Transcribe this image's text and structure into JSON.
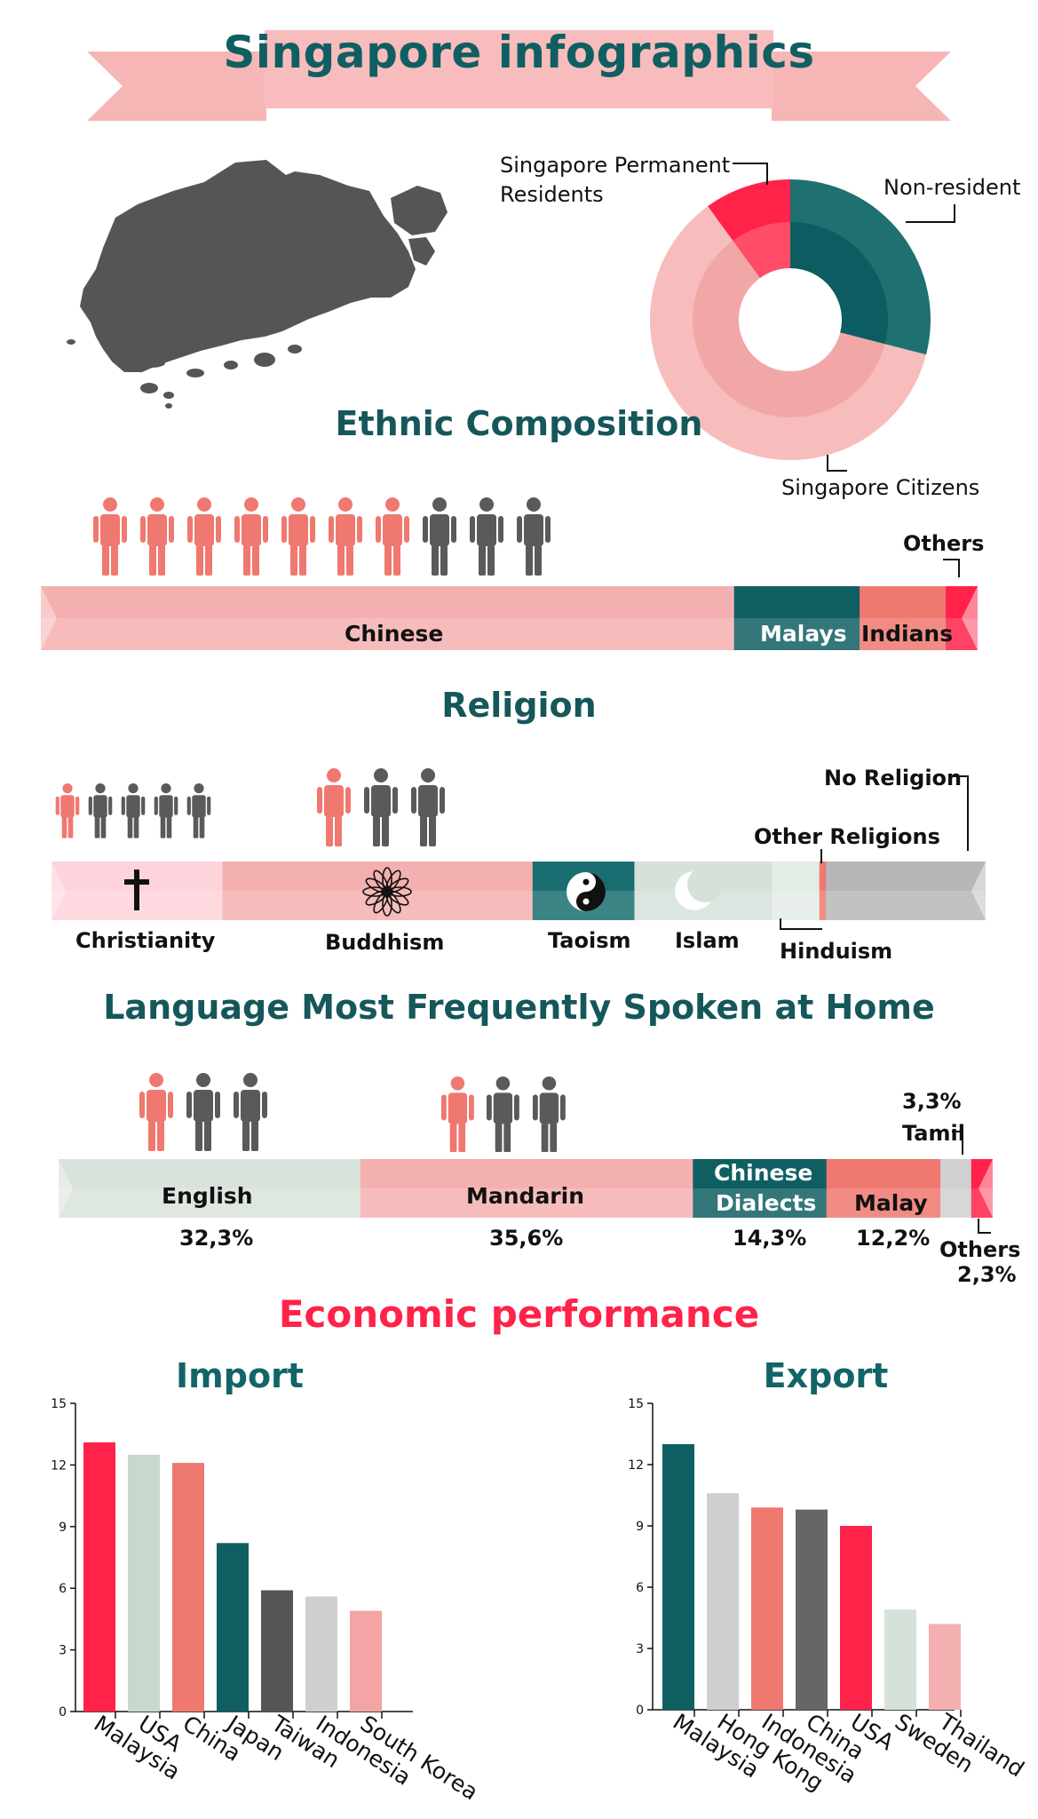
{
  "page": {
    "title": "Singapore infographics"
  },
  "residency": {
    "labels": {
      "permanent": "Singapore Permanent Residents",
      "non_resident": "Non-resident",
      "citizens": "Singapore Citizens"
    },
    "outer": [
      {
        "name": "Non-resident",
        "value": 29,
        "color": "#1f7071"
      },
      {
        "name": "Singapore Citizens",
        "value": 61,
        "color": "#f7bcbc"
      },
      {
        "name": "Singapore Permanent Residents",
        "value": 10,
        "color": "#ff2249"
      }
    ],
    "inner": [
      {
        "name": "Non-resident",
        "value": 29,
        "color": "#0c5d61"
      },
      {
        "name": "Singapore Citizens",
        "value": 61,
        "color": "#f2a7a7"
      },
      {
        "name": "Singapore Permanent Residents",
        "value": 10,
        "color": "#ff4d68"
      }
    ]
  },
  "ethnic": {
    "title": "Ethnic Composition",
    "people": {
      "highlighted": 7,
      "total": 10
    },
    "segments": [
      {
        "label": "Chinese",
        "value": 74,
        "color": "#f4b0b0"
      },
      {
        "label": "Malays",
        "value": 13.4,
        "color": "#0f5f62"
      },
      {
        "label": "Indians",
        "value": 9.2,
        "color": "#ef7870"
      },
      {
        "label": "Others",
        "value": 3.4,
        "color": "#ff2249"
      }
    ]
  },
  "religion": {
    "title": "Religion",
    "labels": {
      "christianity": "Christianity",
      "buddhism": "Buddhism",
      "taoism": "Taoism",
      "islam": "Islam",
      "hinduism": "Hinduism",
      "other": "Other Religions",
      "none": "No Religion"
    },
    "people_small": {
      "highlighted": 1,
      "total": 5
    },
    "people_large": {
      "highlighted": 1,
      "total": 3
    },
    "segments": [
      {
        "label": "Christianity",
        "value": 18.3,
        "color": "#ffd3db"
      },
      {
        "label": "Buddhism",
        "value": 33.2,
        "color": "#f4b0b0"
      },
      {
        "label": "Taoism",
        "value": 10.9,
        "color": "#1a6d70"
      },
      {
        "label": "Islam",
        "value": 14.7,
        "color": "#d6e1da"
      },
      {
        "label": "Hinduism",
        "value": 5.1,
        "color": "#e4ece6"
      },
      {
        "label": "Other Religions",
        "value": 0.7,
        "color": "#ef7870"
      },
      {
        "label": "No Religion",
        "value": 17.1,
        "color": "#b7b7b7"
      }
    ]
  },
  "language": {
    "title": "Language Most Frequently Spoken at Home",
    "people": {
      "highlighted": 1,
      "total": 3
    },
    "segments": [
      {
        "label": "English",
        "pct": "32,3%",
        "value": 32.3,
        "color": "#d9e3dc"
      },
      {
        "label": "Mandarin",
        "pct": "35,6%",
        "value": 35.6,
        "color": "#f4b0b0"
      },
      {
        "label": "Chinese Dialects",
        "pct": "14,3%",
        "value": 14.3,
        "color": "#0f5f62"
      },
      {
        "label": "Malay",
        "pct": "12,2%",
        "value": 12.2,
        "color": "#ef7870"
      },
      {
        "label": "Tamil",
        "pct": "3,3%",
        "value": 3.3,
        "color": "#d0d0d0"
      },
      {
        "label": "Others",
        "pct": "2,3%",
        "value": 2.3,
        "color": "#ff2249"
      }
    ],
    "labels": {
      "chinese_line1": "Chinese",
      "chinese_line2": "Dialects",
      "tamil": "Tamil",
      "tamil_pct": "3,3%",
      "others": "Others",
      "others_pct": "2,3%"
    }
  },
  "economy": {
    "title": "Economic performance"
  },
  "chart_data": [
    {
      "type": "bar",
      "title": "Import",
      "categories": [
        "Malaysia",
        "USA",
        "China",
        "Japan",
        "Taiwan",
        "Indonesia",
        "South Korea"
      ],
      "values": [
        13.1,
        12.5,
        12.1,
        8.2,
        5.9,
        5.6,
        4.9
      ],
      "colors": [
        "#ff2249",
        "#c9d8cf",
        "#ef7870",
        "#0f5f62",
        "#555555",
        "#cfcfcf",
        "#f4a4a4"
      ],
      "ylim": [
        0,
        15
      ],
      "yticks": [
        0,
        3,
        6,
        9,
        12,
        15
      ]
    },
    {
      "type": "bar",
      "title": "Export",
      "categories": [
        "Malaysia",
        "Hong Kong",
        "Indonesia",
        "China",
        "USA",
        "Sweden",
        "Thailand"
      ],
      "values": [
        13.0,
        10.6,
        9.9,
        9.8,
        9.0,
        4.9,
        4.2
      ],
      "colors": [
        "#0f5f62",
        "#cfcfcf",
        "#ef7870",
        "#666666",
        "#ff2249",
        "#d6e1da",
        "#f4b0b0"
      ],
      "ylim": [
        0,
        15
      ],
      "yticks": [
        0,
        3,
        6,
        9,
        12,
        15
      ]
    }
  ]
}
